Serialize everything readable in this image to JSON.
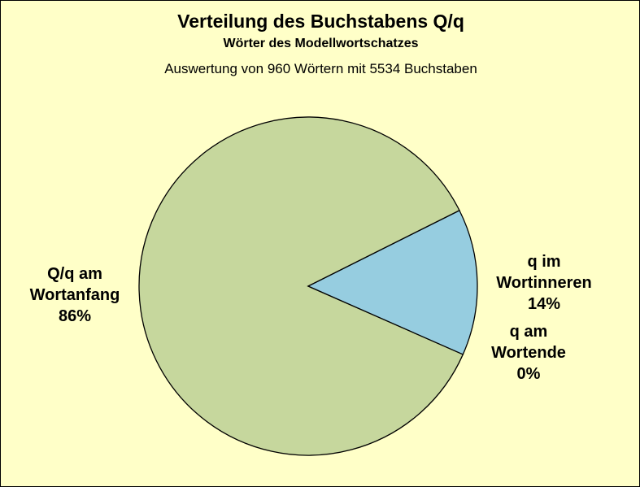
{
  "chart_data": {
    "type": "pie",
    "title": "Verteilung des Buchstabens Q/q",
    "subtitle": "Wörter des Modellwortschatzes",
    "note": "Auswertung von 960 Wörtern mit 5534 Buchstaben",
    "slices": [
      {
        "label_lines": [
          "Q/q am",
          "Wortanfang",
          "86%"
        ],
        "value": 86,
        "color": "#c6d79d"
      },
      {
        "label_lines": [
          "q im",
          "Wortinneren",
          "14%"
        ],
        "value": 14,
        "color": "#96cde0"
      },
      {
        "label_lines": [
          "q am",
          "Wortende",
          "0%"
        ],
        "value": 0,
        "color": "#e0b0b0"
      }
    ],
    "background": "#ffffc8",
    "outline": "#000000"
  }
}
